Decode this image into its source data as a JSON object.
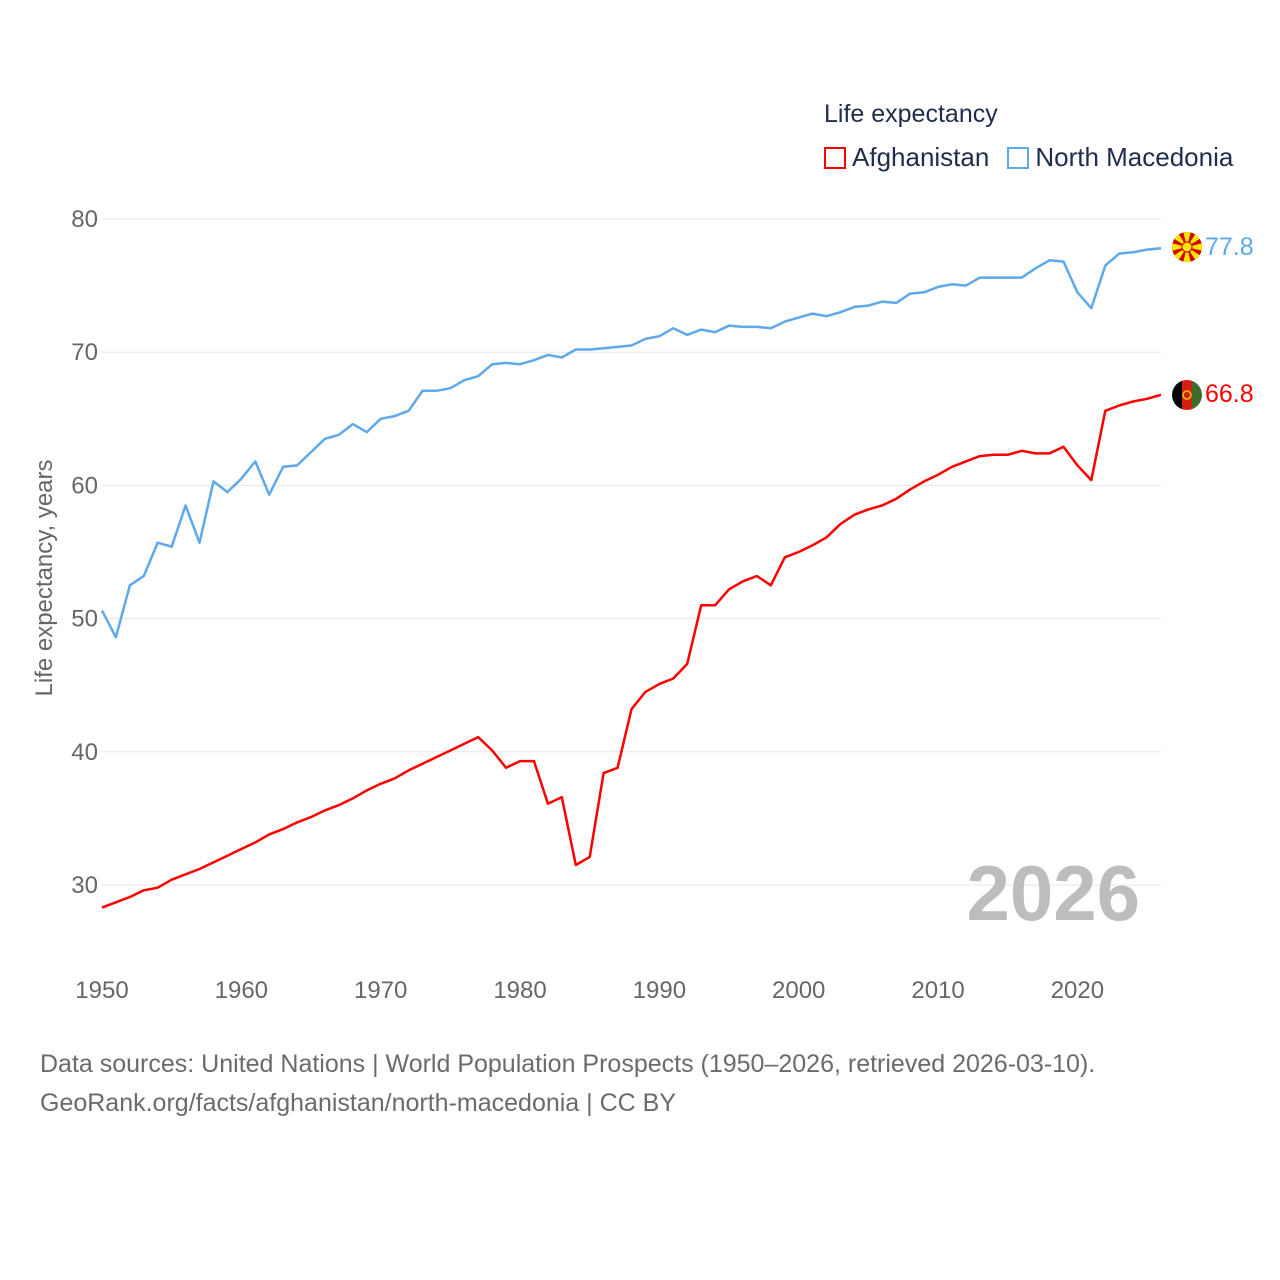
{
  "chart_data": {
    "type": "line",
    "title": "Life expectancy",
    "xlabel": "",
    "ylabel": "Life expectancy, years",
    "xlim": [
      1950,
      2026
    ],
    "ylim": [
      25,
      82
    ],
    "x_ticks": [
      1950,
      1960,
      1970,
      1980,
      1990,
      2000,
      2010,
      2020
    ],
    "y_ticks": [
      30,
      40,
      50,
      60,
      70,
      80
    ],
    "grid": true,
    "legend_position": "top-right",
    "year_watermark": "2026",
    "x": [
      1950,
      1951,
      1952,
      1953,
      1954,
      1955,
      1956,
      1957,
      1958,
      1959,
      1960,
      1961,
      1962,
      1963,
      1964,
      1965,
      1966,
      1967,
      1968,
      1969,
      1970,
      1971,
      1972,
      1973,
      1974,
      1975,
      1976,
      1977,
      1978,
      1979,
      1980,
      1981,
      1982,
      1983,
      1984,
      1985,
      1986,
      1987,
      1988,
      1989,
      1990,
      1991,
      1992,
      1993,
      1994,
      1995,
      1996,
      1997,
      1998,
      1999,
      2000,
      2001,
      2002,
      2003,
      2004,
      2005,
      2006,
      2007,
      2008,
      2009,
      2010,
      2011,
      2012,
      2013,
      2014,
      2015,
      2016,
      2017,
      2018,
      2019,
      2020,
      2021,
      2022,
      2023,
      2024,
      2025,
      2026
    ],
    "series": [
      {
        "name": "Afghanistan",
        "color": "#ff0000",
        "end_label": "66.8",
        "values": [
          28.3,
          28.7,
          29.1,
          29.6,
          29.8,
          30.4,
          30.8,
          31.2,
          31.7,
          32.2,
          32.7,
          33.2,
          33.8,
          34.2,
          34.7,
          35.1,
          35.6,
          36.0,
          36.5,
          37.1,
          37.6,
          38.0,
          38.6,
          39.1,
          39.6,
          40.1,
          40.6,
          41.1,
          40.1,
          38.8,
          39.3,
          39.3,
          36.1,
          36.6,
          31.5,
          32.1,
          38.4,
          38.8,
          43.2,
          44.5,
          45.1,
          45.5,
          46.6,
          51.0,
          51.0,
          52.2,
          52.8,
          53.2,
          52.5,
          54.6,
          55.0,
          55.5,
          56.1,
          57.1,
          57.8,
          58.2,
          58.5,
          59.0,
          59.7,
          60.3,
          60.8,
          61.4,
          61.8,
          62.2,
          62.3,
          62.3,
          62.6,
          62.4,
          62.4,
          62.9,
          61.5,
          60.4,
          65.6,
          66.0,
          66.3,
          66.5,
          66.8
        ]
      },
      {
        "name": "North Macedonia",
        "color": "#5ea8ec",
        "end_label": "77.8",
        "values": [
          50.6,
          48.6,
          52.5,
          53.2,
          55.7,
          55.4,
          58.5,
          55.7,
          60.3,
          59.5,
          60.5,
          61.8,
          59.3,
          61.4,
          61.5,
          62.5,
          63.5,
          63.8,
          64.6,
          64.0,
          65.0,
          65.2,
          65.6,
          67.1,
          67.1,
          67.3,
          67.9,
          68.2,
          69.1,
          69.2,
          69.1,
          69.4,
          69.8,
          69.6,
          70.2,
          70.2,
          70.3,
          70.4,
          70.5,
          71.0,
          71.2,
          71.8,
          71.3,
          71.7,
          71.5,
          72.0,
          71.9,
          71.9,
          71.8,
          72.3,
          72.6,
          72.9,
          72.7,
          73.0,
          73.4,
          73.5,
          73.8,
          73.7,
          74.4,
          74.5,
          74.9,
          75.1,
          75.0,
          75.6,
          75.6,
          75.6,
          75.6,
          76.3,
          76.9,
          76.8,
          74.5,
          73.3,
          76.5,
          77.4,
          77.5,
          77.7,
          77.8
        ]
      }
    ]
  },
  "footer": {
    "line1": "Data sources: United Nations | World Population Prospects (1950–2026, retrieved 2026-03-10).",
    "line2": "GeoRank.org/facts/afghanistan/north-macedonia | CC BY"
  }
}
